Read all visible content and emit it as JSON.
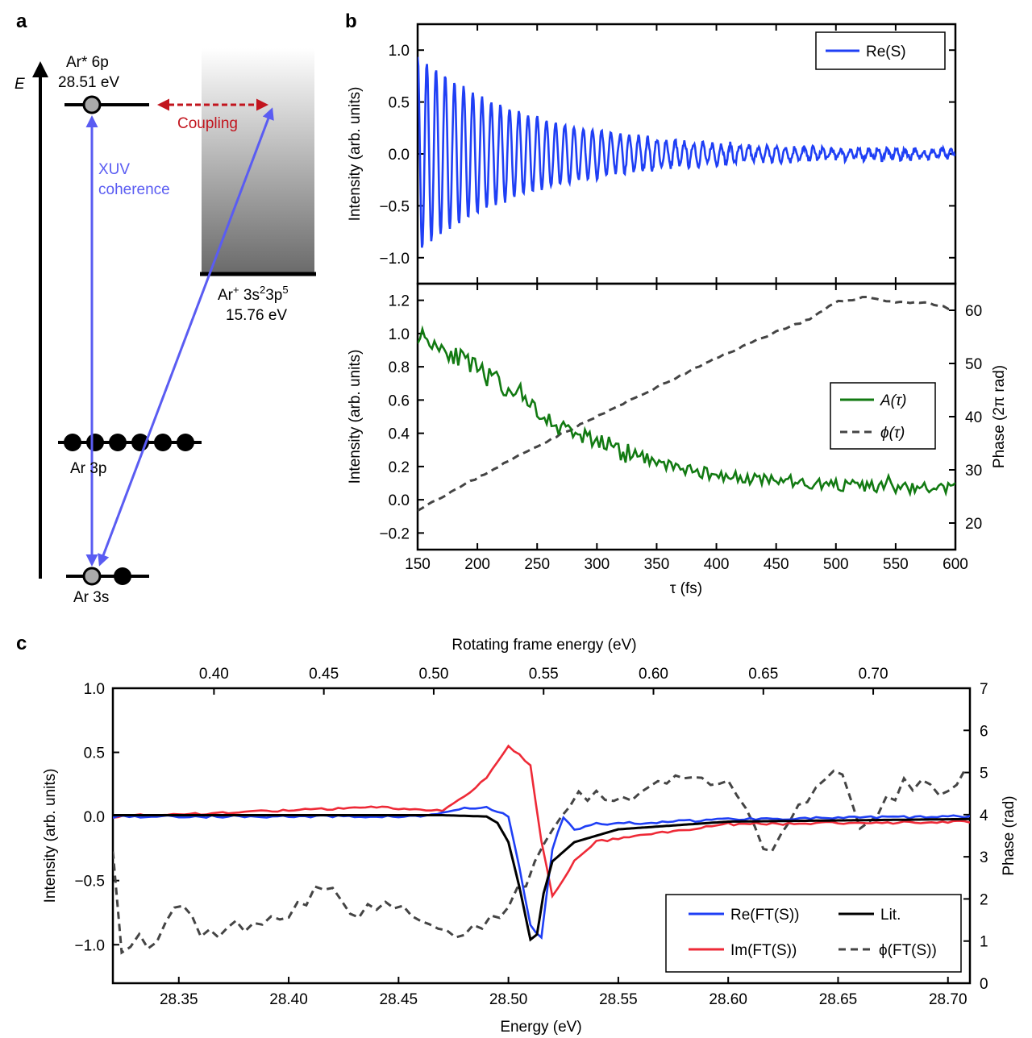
{
  "panels": {
    "a": {
      "label": "a",
      "axis_label": "E",
      "ar6p_name": "Ar* 6p",
      "ar6p_energy": "28.51 eV",
      "coupling": "Coupling",
      "xuv_line1": "XUV",
      "xuv_line2": "coherence",
      "ion_name_prefix": "Ar",
      "ion_name_sup1": "+",
      "ion_name_mid": " 3s",
      "ion_name_sup2": "2",
      "ion_name_mid2": "3p",
      "ion_name_sup3": "5",
      "ion_energy": "15.76 eV",
      "ar3p": "Ar  3p",
      "ar3s": "Ar 3s"
    },
    "b_label": "b",
    "c_label": "c"
  },
  "colors": {
    "blue": "#1f3ff5",
    "green": "#127a12",
    "red": "#ee2a37",
    "gray": "#444444",
    "coupling_red": "#c2151e",
    "xuv_blue": "#5a5cf2",
    "black": "#000000"
  },
  "chart_data": [
    {
      "id": "b_top",
      "type": "line",
      "xlim": [
        150,
        600
      ],
      "ylim": [
        -1.25,
        1.25
      ],
      "yticks": [
        -1.0,
        -0.5,
        0.0,
        0.5,
        1.0
      ],
      "yticklabels": [
        "−1.0",
        "−0.5",
        "0.0",
        "0.5",
        "1.0"
      ],
      "ylabel": "Intensity (arb. units)",
      "series": [
        {
          "name": "Re(S)",
          "color": "#1f3ff5",
          "period_fs": 7.7,
          "amplitude_start": 0.92,
          "decay_fs": 95,
          "noise": 0.05
        }
      ],
      "legend": {
        "position": "top-right",
        "entries": [
          "Re(S)"
        ]
      }
    },
    {
      "id": "b_bottom",
      "type": "line",
      "xlim": [
        150,
        600
      ],
      "xticks": [
        150,
        200,
        250,
        300,
        350,
        400,
        450,
        500,
        550,
        600
      ],
      "xticklabels": [
        "150",
        "200",
        "250",
        "300",
        "350",
        "400",
        "450",
        "500",
        "550",
        "600"
      ],
      "xlabel": "τ (fs)",
      "ylim": [
        -0.3,
        1.3
      ],
      "yticks": [
        -0.2,
        0.0,
        0.2,
        0.4,
        0.6,
        0.8,
        1.0,
        1.2
      ],
      "yticklabels": [
        "−0.2",
        "0.0",
        "0.2",
        "0.4",
        "0.6",
        "0.8",
        "1.0",
        "1.2"
      ],
      "ylabel": "Intensity (arb. units)",
      "y2lim": [
        15,
        65
      ],
      "y2ticks": [
        20,
        30,
        40,
        50,
        60
      ],
      "y2ticklabels": [
        "20",
        "30",
        "40",
        "50",
        "60"
      ],
      "y2label": "Phase (2π rad)",
      "series": [
        {
          "name": "A(τ)",
          "color": "#127a12",
          "axis": "left",
          "x": [
            150,
            175,
            200,
            225,
            250,
            275,
            300,
            325,
            350,
            375,
            400,
            450,
            500,
            550,
            600
          ],
          "y": [
            1.0,
            0.9,
            0.78,
            0.67,
            0.52,
            0.42,
            0.36,
            0.28,
            0.23,
            0.18,
            0.15,
            0.11,
            0.09,
            0.07,
            0.07
          ]
        },
        {
          "name": "ϕ(τ)",
          "color": "#444444",
          "axis": "right",
          "dashed": true,
          "x": [
            150,
            200,
            250,
            300,
            350,
            400,
            450,
            480,
            500,
            525,
            550,
            575,
            600
          ],
          "y": [
            22.5,
            28.5,
            34.5,
            40,
            45.5,
            51,
            56,
            58.5,
            61.5,
            62.5,
            61.5,
            61.5,
            60
          ]
        }
      ],
      "legend": {
        "position": "right",
        "entries": [
          "A(τ)",
          "ϕ(τ)"
        ]
      }
    },
    {
      "id": "c",
      "type": "line",
      "xlim": [
        28.32,
        28.71
      ],
      "xticks": [
        28.35,
        28.4,
        28.45,
        28.5,
        28.55,
        28.6,
        28.65,
        28.7
      ],
      "xticklabels": [
        "28.35",
        "28.40",
        "28.45",
        "28.50",
        "28.55",
        "28.60",
        "28.65",
        "28.70"
      ],
      "xlabel": "Energy (eV)",
      "x2ticks": [
        0.4,
        0.45,
        0.5,
        0.55,
        0.6,
        0.65,
        0.7
      ],
      "x2ticklabels": [
        "0.40",
        "0.45",
        "0.50",
        "0.55",
        "0.60",
        "0.65",
        "0.70"
      ],
      "x2label": "Rotating frame energy (eV)",
      "x2offset_eV": 27.966,
      "ylim": [
        -1.3,
        1.0
      ],
      "yticks": [
        -1.0,
        -0.5,
        0.0,
        0.5,
        1.0
      ],
      "yticklabels": [
        "−1.0",
        "−0.5",
        "0.0",
        "0.5",
        "1.0"
      ],
      "ylabel": "Intensity (arb. units)",
      "y2lim": [
        0,
        7
      ],
      "y2ticks": [
        0,
        1,
        2,
        3,
        4,
        5,
        6,
        7
      ],
      "y2ticklabels": [
        "0",
        "1",
        "2",
        "3",
        "4",
        "5",
        "6",
        "7"
      ],
      "y2label": "Phase (rad)",
      "series": [
        {
          "name": "Re(FT(S))",
          "color": "#1f3ff5",
          "axis": "left",
          "x": [
            28.32,
            28.46,
            28.48,
            28.49,
            28.5,
            28.505,
            28.51,
            28.515,
            28.52,
            28.525,
            28.53,
            28.54,
            28.56,
            28.6,
            28.71
          ],
          "y": [
            0.0,
            0.0,
            0.06,
            0.07,
            0.0,
            -0.4,
            -0.85,
            -0.95,
            -0.25,
            0.0,
            -0.1,
            -0.06,
            -0.05,
            -0.02,
            0.0
          ]
        },
        {
          "name": "Im(FT(S))",
          "color": "#ee2a37",
          "axis": "left",
          "x": [
            28.32,
            28.44,
            28.47,
            28.48,
            28.49,
            28.5,
            28.505,
            28.51,
            28.515,
            28.52,
            28.53,
            28.54,
            28.55,
            28.6,
            28.71
          ],
          "y": [
            0.0,
            0.07,
            0.05,
            0.15,
            0.3,
            0.55,
            0.48,
            0.4,
            -0.2,
            -0.62,
            -0.35,
            -0.2,
            -0.17,
            -0.06,
            -0.04
          ]
        },
        {
          "name": "Lit.",
          "color": "#000000",
          "axis": "left",
          "profile": "fano",
          "x": [
            28.32,
            28.47,
            28.49,
            28.495,
            28.5,
            28.505,
            28.51,
            28.513,
            28.516,
            28.52,
            28.53,
            28.55,
            28.6,
            28.71
          ],
          "y": [
            0.01,
            0.01,
            0.0,
            -0.05,
            -0.2,
            -0.55,
            -0.96,
            -0.92,
            -0.6,
            -0.35,
            -0.2,
            -0.1,
            -0.04,
            -0.02
          ]
        },
        {
          "name": "ϕ(FT(S))",
          "color": "#444444",
          "axis": "right",
          "dashed": true,
          "x": [
            28.32,
            28.325,
            28.33,
            28.34,
            28.35,
            28.36,
            28.38,
            28.4,
            28.415,
            28.43,
            28.45,
            28.47,
            28.49,
            28.5,
            28.51,
            28.52,
            28.53,
            28.55,
            28.58,
            28.6,
            28.62,
            28.64,
            28.65,
            28.66,
            28.68,
            28.7,
            28.71
          ],
          "y": [
            3.3,
            0.2,
            1.1,
            0.9,
            2.0,
            1.1,
            1.4,
            1.7,
            2.3,
            1.7,
            1.8,
            1.1,
            1.4,
            1.9,
            2.6,
            3.8,
            4.5,
            4.4,
            4.9,
            4.8,
            3.0,
            4.8,
            5.2,
            3.6,
            4.7,
            4.6,
            5.3
          ]
        }
      ],
      "legend": {
        "position": "bottom-right",
        "entries": [
          "Re(FT(S))",
          "Lit.",
          "Im(FT(S))",
          "ϕ(FT(S))"
        ]
      }
    }
  ]
}
